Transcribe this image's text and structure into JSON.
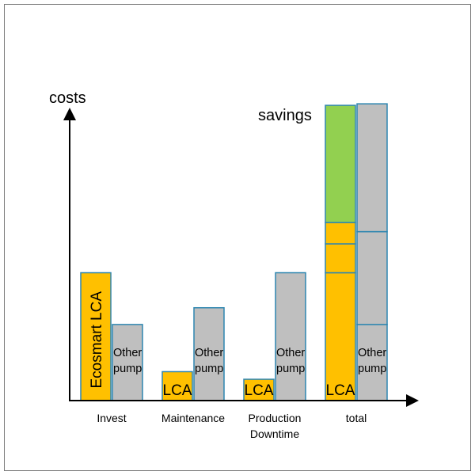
{
  "chart_data": {
    "type": "bar",
    "ylabel": "costs",
    "annotation": "savings",
    "categories": [
      "Invest",
      "Maintenance",
      "Production Downtime",
      "total"
    ],
    "ylim": [
      0,
      10
    ],
    "colors": {
      "lca": "#ffc000",
      "other": "#bfbfbf",
      "savings": "#92d050",
      "stroke": "#2e86b0"
    },
    "groups": [
      {
        "category": "Invest",
        "bars": [
          {
            "name": "Ecosmart LCA",
            "label": "Ecosmart LCA",
            "label_rotated": true,
            "color_key": "lca",
            "segments": [
              4.2
            ]
          },
          {
            "name": "Other pump",
            "label": "Other pump",
            "color_key": "other",
            "segments": [
              2.5
            ]
          }
        ]
      },
      {
        "category": "Maintenance",
        "bars": [
          {
            "name": "LCA",
            "label": "LCA",
            "color_key": "lca",
            "segments": [
              0.95
            ]
          },
          {
            "name": "Other pump",
            "label": "Other pump",
            "color_key": "other",
            "segments": [
              3.05
            ]
          }
        ]
      },
      {
        "category": "Production Downtime",
        "bars": [
          {
            "name": "LCA",
            "label": "LCA",
            "color_key": "lca",
            "segments": [
              0.7
            ]
          },
          {
            "name": "Other pump",
            "label": "Other pump",
            "color_key": "other",
            "segments": [
              4.2
            ]
          }
        ]
      },
      {
        "category": "total",
        "bars": [
          {
            "name": "LCA",
            "label": "LCA",
            "color_key": "lca",
            "segments": [
              4.2,
              0.95,
              0.7
            ],
            "savings": 3.85
          },
          {
            "name": "Other pump",
            "label": "Other pump",
            "color_key": "other",
            "segments": [
              2.5,
              3.05,
              4.2
            ]
          }
        ]
      }
    ]
  }
}
